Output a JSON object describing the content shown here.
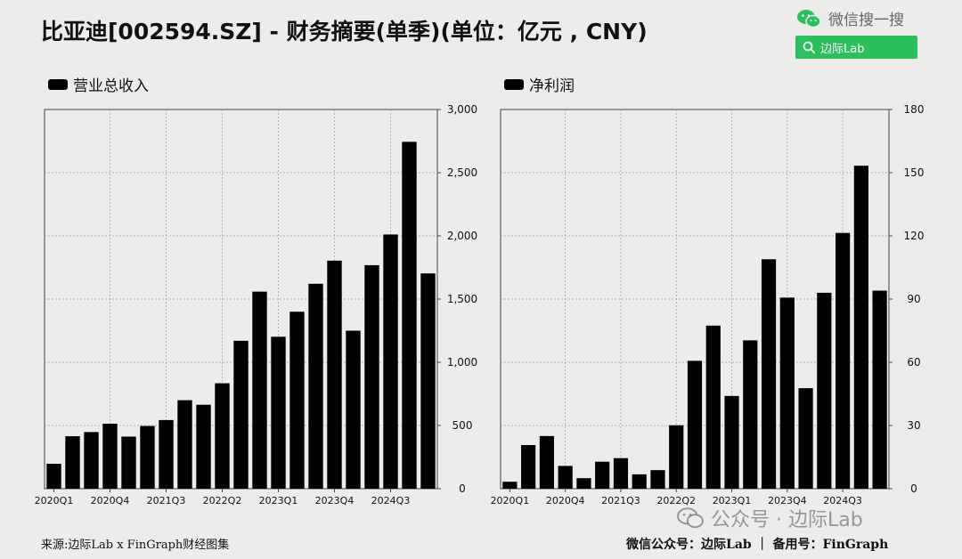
{
  "title": "比亚迪[002594.SZ] - 财务摘要(单季)(单位：亿元 , CNY)",
  "wechat_search": {
    "label": "微信搜一搜",
    "query": "边际Lab",
    "icon": "wechat-icon",
    "search_icon": "search-icon",
    "accent": "#2ac05b"
  },
  "footer": {
    "source": "来源:边际Lab x FinGraph财经图集",
    "account": "微信公众号：边际Lab ｜ 备用号：FinGraph"
  },
  "watermark": {
    "text": "公众号 · 边际Lab",
    "icon": "wechat-icon"
  },
  "chart_data": [
    {
      "type": "bar",
      "legend": "营业总收入",
      "color": "#000000",
      "categories": [
        "2020Q1",
        "2020Q2",
        "2020Q3",
        "2020Q4",
        "2021Q1",
        "2021Q2",
        "2021Q3",
        "2021Q4",
        "2022Q1",
        "2022Q2",
        "2022Q3",
        "2022Q4",
        "2023Q1",
        "2023Q2",
        "2023Q3",
        "2023Q4",
        "2024Q1",
        "2024Q2",
        "2024Q3",
        "2024Q4",
        "2025Q1"
      ],
      "x_tick_labels": [
        "2020Q1",
        "2020Q4",
        "2021Q3",
        "2022Q2",
        "2023Q1",
        "2023Q4",
        "2024Q3"
      ],
      "values": [
        197,
        415,
        448,
        514,
        412,
        496,
        543,
        700,
        664,
        834,
        1170,
        1559,
        1202,
        1400,
        1621,
        1804,
        1250,
        1768,
        2011,
        2744,
        1703
      ],
      "ylim": [
        0,
        3000
      ],
      "y_ticks": [
        "0",
        "500",
        "1,000",
        "1,500",
        "2,000",
        "2,500",
        "3,000"
      ],
      "y_axis_side": "right",
      "grid": true
    },
    {
      "type": "bar",
      "legend": "净利润",
      "color": "#000000",
      "categories": [
        "2020Q1",
        "2020Q2",
        "2020Q3",
        "2020Q4",
        "2021Q1",
        "2021Q2",
        "2021Q3",
        "2021Q4",
        "2022Q1",
        "2022Q2",
        "2022Q3",
        "2022Q4",
        "2023Q1",
        "2023Q2",
        "2023Q3",
        "2023Q4",
        "2024Q1",
        "2024Q2",
        "2024Q3",
        "2024Q4",
        "2025Q1"
      ],
      "x_tick_labels": [
        "2020Q1",
        "2020Q4",
        "2021Q3",
        "2022Q2",
        "2023Q1",
        "2023Q4",
        "2024Q3"
      ],
      "values": [
        3.3,
        20.7,
        25.0,
        10.8,
        5.0,
        12.8,
        14.5,
        6.8,
        8.8,
        30.1,
        60.7,
        77.4,
        44.0,
        70.4,
        108.9,
        90.7,
        47.7,
        93.0,
        121.4,
        153.3,
        94.0
      ],
      "ylim": [
        0,
        180
      ],
      "y_ticks": [
        "0",
        "30",
        "60",
        "90",
        "120",
        "150",
        "180"
      ],
      "y_axis_side": "right",
      "grid": true
    }
  ]
}
